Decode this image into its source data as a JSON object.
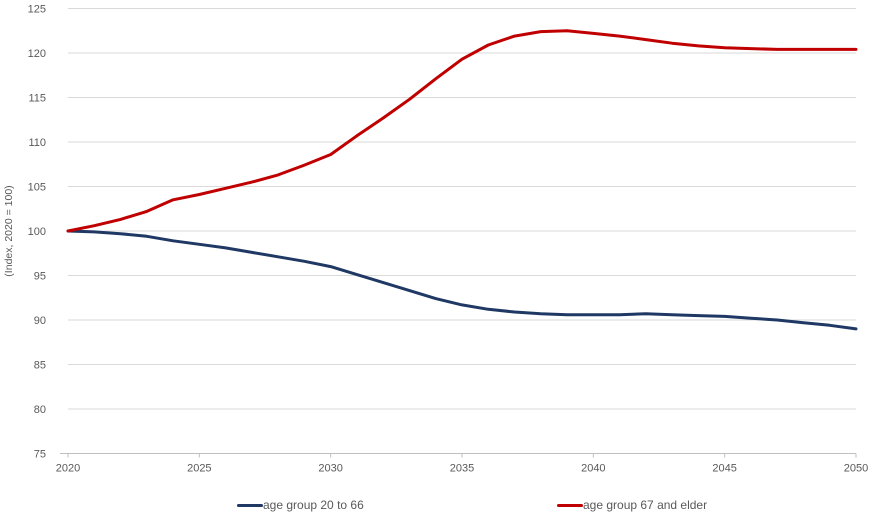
{
  "chart_data": {
    "type": "line",
    "title": "",
    "xlabel": "",
    "ylabel": "(Index, 2020 = 100)",
    "ylim": [
      75,
      125
    ],
    "yticks": [
      75,
      80,
      85,
      90,
      95,
      100,
      105,
      110,
      115,
      120,
      125
    ],
    "xticks": [
      2020,
      2025,
      2030,
      2035,
      2040,
      2045,
      2050
    ],
    "grid": "horizontal",
    "legend_position": "bottom",
    "x": [
      2020,
      2021,
      2022,
      2023,
      2024,
      2025,
      2026,
      2027,
      2028,
      2029,
      2030,
      2031,
      2032,
      2033,
      2034,
      2035,
      2036,
      2037,
      2038,
      2039,
      2040,
      2041,
      2042,
      2043,
      2044,
      2045,
      2046,
      2047,
      2048,
      2049,
      2050
    ],
    "series": [
      {
        "name": "age group 20 to 66",
        "color": "#1F3864",
        "values": [
          100,
          99.9,
          99.7,
          99.4,
          98.9,
          98.5,
          98.1,
          97.6,
          97.1,
          96.6,
          96.0,
          95.1,
          94.2,
          93.3,
          92.4,
          91.7,
          91.2,
          90.9,
          90.7,
          90.6,
          90.6,
          90.6,
          90.7,
          90.6,
          90.5,
          90.4,
          90.2,
          90.0,
          89.7,
          89.4,
          89.0
        ]
      },
      {
        "name": "age group 67 and elder",
        "color": "#C00000",
        "values": [
          100,
          100.6,
          101.3,
          102.2,
          103.5,
          104.1,
          104.8,
          105.5,
          106.3,
          107.4,
          108.6,
          110.7,
          112.7,
          114.8,
          117.1,
          119.3,
          120.9,
          121.9,
          122.4,
          122.5,
          122.2,
          121.9,
          121.5,
          121.1,
          120.8,
          120.6,
          120.5,
          120.4,
          120.4,
          120.4,
          120.4
        ]
      }
    ],
    "colors": {
      "grid": "#D9D9D9",
      "axis": "#BFBFBF",
      "tick_label": "#595959",
      "background": "#FFFFFF"
    },
    "legend_items": [
      "age group 20 to 66",
      "age group 67 and elder"
    ]
  }
}
